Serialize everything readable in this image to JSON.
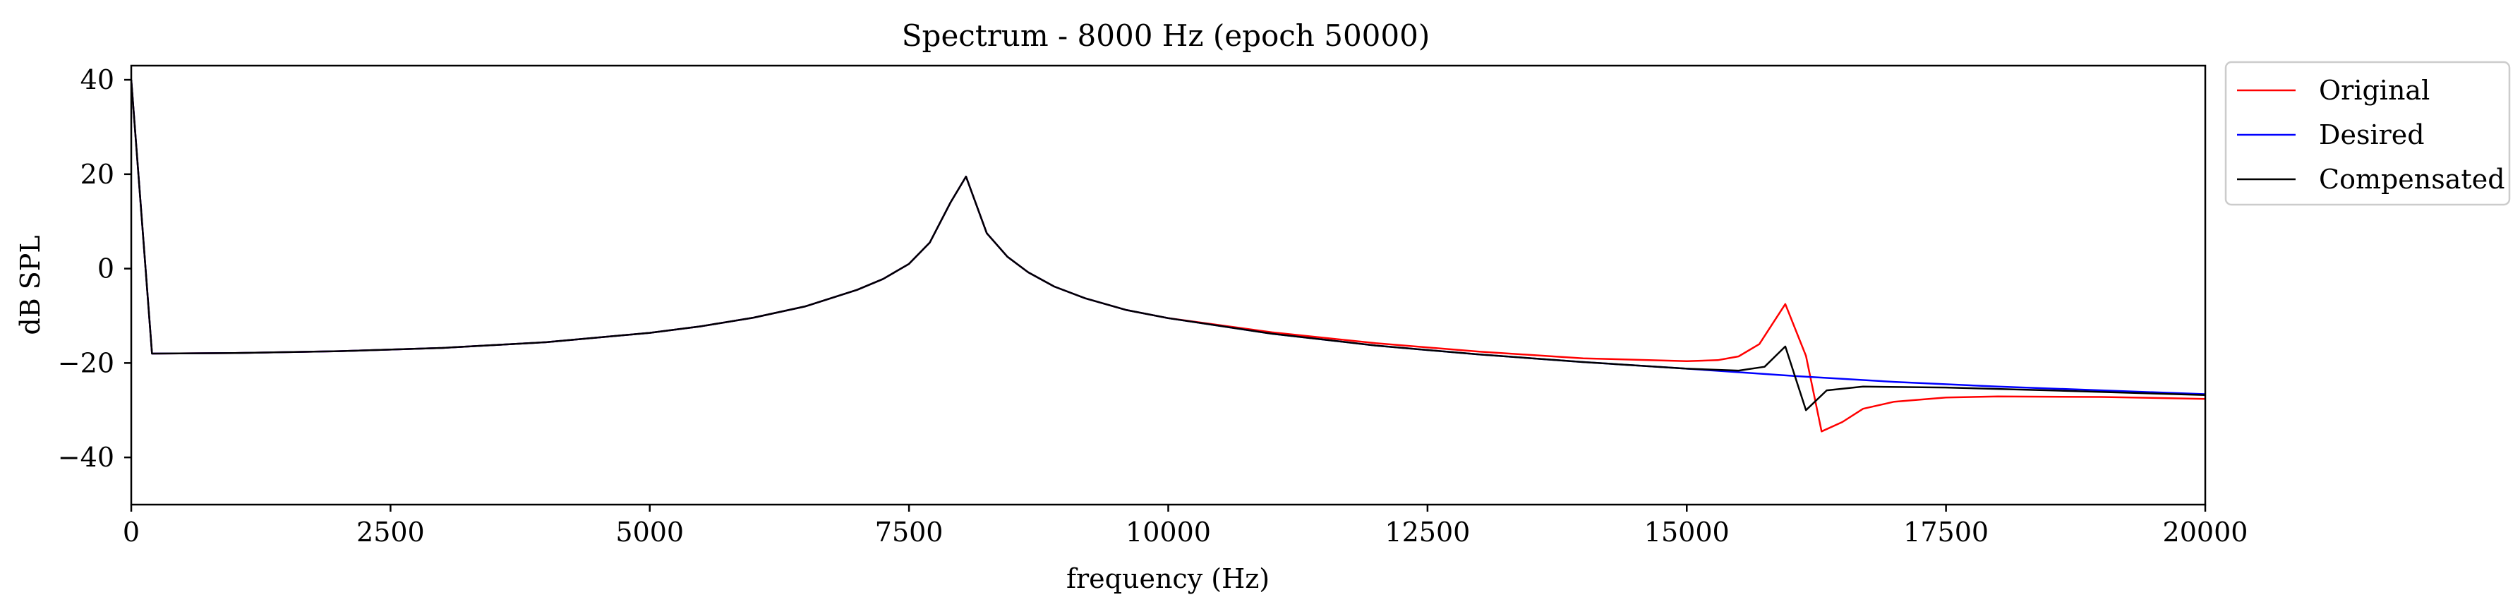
{
  "chart_data": {
    "type": "line",
    "title": "Spectrum - 8000 Hz (epoch 50000)",
    "xlabel": "frequency (Hz)",
    "ylabel": "dB SPL",
    "xlim": [
      0,
      20000
    ],
    "ylim": [
      -50,
      43
    ],
    "xticks": [
      0,
      2500,
      5000,
      7500,
      10000,
      12500,
      15000,
      17500,
      20000
    ],
    "xtick_labels": [
      "0",
      "2500",
      "5000",
      "7500",
      "10000",
      "12500",
      "15000",
      "17500",
      "20000"
    ],
    "yticks": [
      40,
      20,
      0,
      -20,
      -40
    ],
    "ytick_labels": [
      "40",
      "20",
      "0",
      "−20",
      "−40"
    ],
    "grid": false,
    "legend_position": "outside-top-right",
    "series": [
      {
        "name": "Original",
        "color": "#ff0000",
        "points": [
          [
            0,
            40
          ],
          [
            200,
            -18
          ],
          [
            1000,
            -17.9
          ],
          [
            2000,
            -17.5
          ],
          [
            3000,
            -16.8
          ],
          [
            4000,
            -15.6
          ],
          [
            5000,
            -13.6
          ],
          [
            5500,
            -12.2
          ],
          [
            6000,
            -10.4
          ],
          [
            6500,
            -8.0
          ],
          [
            7000,
            -4.5
          ],
          [
            7250,
            -2.2
          ],
          [
            7500,
            1.0
          ],
          [
            7700,
            5.5
          ],
          [
            7900,
            14.0
          ],
          [
            8050,
            19.5
          ],
          [
            8250,
            7.5
          ],
          [
            8450,
            2.5
          ],
          [
            8650,
            -0.8
          ],
          [
            8900,
            -3.8
          ],
          [
            9200,
            -6.3
          ],
          [
            9600,
            -8.8
          ],
          [
            10000,
            -10.5
          ],
          [
            11000,
            -13.5
          ],
          [
            12000,
            -15.8
          ],
          [
            13000,
            -17.6
          ],
          [
            14000,
            -19.0
          ],
          [
            15000,
            -19.6
          ],
          [
            15300,
            -19.4
          ],
          [
            15500,
            -18.6
          ],
          [
            15700,
            -16.0
          ],
          [
            15950,
            -7.5
          ],
          [
            16150,
            -18.5
          ],
          [
            16300,
            -34.5
          ],
          [
            16500,
            -32.5
          ],
          [
            16700,
            -29.7
          ],
          [
            17000,
            -28.2
          ],
          [
            17500,
            -27.3
          ],
          [
            18000,
            -27.1
          ],
          [
            19000,
            -27.2
          ],
          [
            20000,
            -27.6
          ]
        ]
      },
      {
        "name": "Desired",
        "color": "#0000ff",
        "points": [
          [
            0,
            40
          ],
          [
            200,
            -18
          ],
          [
            1000,
            -17.9
          ],
          [
            2000,
            -17.5
          ],
          [
            3000,
            -16.8
          ],
          [
            4000,
            -15.6
          ],
          [
            5000,
            -13.6
          ],
          [
            5500,
            -12.2
          ],
          [
            6000,
            -10.4
          ],
          [
            6500,
            -8.0
          ],
          [
            7000,
            -4.5
          ],
          [
            7250,
            -2.2
          ],
          [
            7500,
            1.0
          ],
          [
            7700,
            5.5
          ],
          [
            7900,
            14.0
          ],
          [
            8050,
            19.5
          ],
          [
            8250,
            7.5
          ],
          [
            8450,
            2.5
          ],
          [
            8650,
            -0.8
          ],
          [
            8900,
            -3.8
          ],
          [
            9200,
            -6.3
          ],
          [
            9600,
            -8.8
          ],
          [
            10000,
            -10.5
          ],
          [
            11000,
            -13.8
          ],
          [
            12000,
            -16.3
          ],
          [
            13000,
            -18.2
          ],
          [
            14000,
            -19.8
          ],
          [
            15000,
            -21.2
          ],
          [
            16000,
            -22.7
          ],
          [
            17000,
            -24.0
          ],
          [
            18000,
            -25.0
          ],
          [
            19000,
            -25.8
          ],
          [
            20000,
            -26.6
          ]
        ]
      },
      {
        "name": "Compensated",
        "color": "#000000",
        "points": [
          [
            0,
            40
          ],
          [
            200,
            -18
          ],
          [
            1000,
            -17.9
          ],
          [
            2000,
            -17.5
          ],
          [
            3000,
            -16.8
          ],
          [
            4000,
            -15.6
          ],
          [
            5000,
            -13.6
          ],
          [
            5500,
            -12.2
          ],
          [
            6000,
            -10.4
          ],
          [
            6500,
            -8.0
          ],
          [
            7000,
            -4.5
          ],
          [
            7250,
            -2.2
          ],
          [
            7500,
            1.0
          ],
          [
            7700,
            5.5
          ],
          [
            7900,
            14.0
          ],
          [
            8050,
            19.5
          ],
          [
            8250,
            7.5
          ],
          [
            8450,
            2.5
          ],
          [
            8650,
            -0.8
          ],
          [
            8900,
            -3.8
          ],
          [
            9200,
            -6.3
          ],
          [
            9600,
            -8.8
          ],
          [
            10000,
            -10.5
          ],
          [
            11000,
            -13.8
          ],
          [
            12000,
            -16.3
          ],
          [
            13000,
            -18.2
          ],
          [
            14000,
            -19.8
          ],
          [
            15000,
            -21.2
          ],
          [
            15500,
            -21.6
          ],
          [
            15750,
            -20.8
          ],
          [
            15950,
            -16.5
          ],
          [
            16150,
            -30.0
          ],
          [
            16350,
            -25.8
          ],
          [
            16700,
            -25.0
          ],
          [
            17500,
            -25.2
          ],
          [
            18500,
            -25.8
          ],
          [
            20000,
            -26.8
          ]
        ]
      }
    ]
  }
}
